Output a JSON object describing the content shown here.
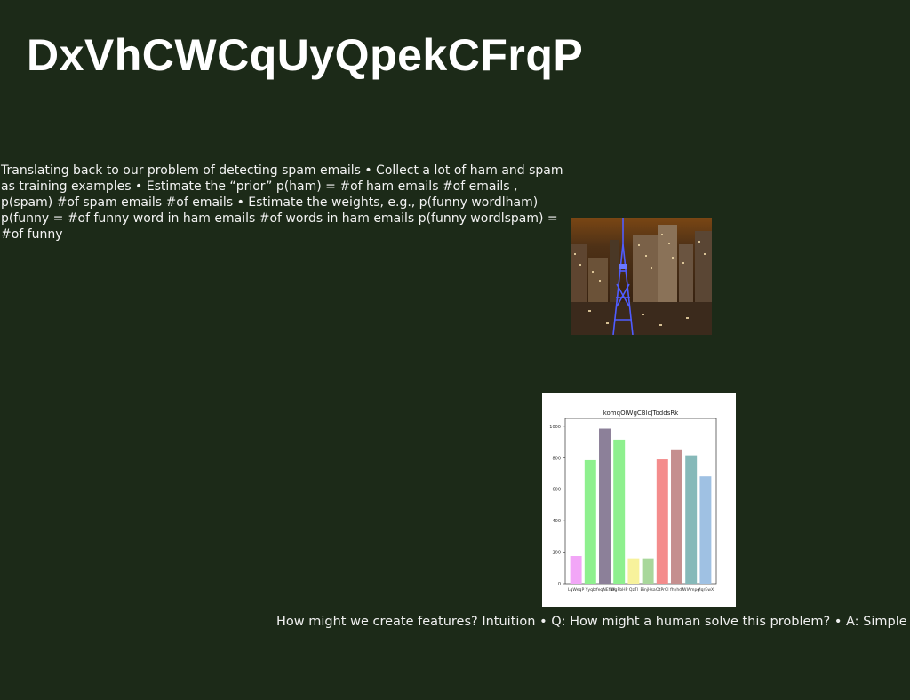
{
  "slide": {
    "title": "DxVhCWCqUyQpekCFrqP",
    "body": "Translating back to our problem of detecting spam emails • Collect a lot of ham and spam as training examples • Estimate the “prior” p(ham) = #of ham emails #of emails , p(spam) #of spam emails #of emails • Estimate the weights, e.g., p(funny wordlham) p(funny = #of funny word in ham emails #of words in ham emails p(funny wordlspam) = #of funny",
    "caption": "How might we create features? Intuition • Q: How might a human solve this problem? • A: Simple"
  },
  "chart_data": {
    "type": "bar",
    "title": "komqOlWgCBlcJToddsRk",
    "categories": [
      "LqWeqP",
      "Yyqb",
      "zfeqNEfRA",
      "WgPbHP",
      "QzTl",
      "BinjHsa",
      "OtPrCl",
      "fhyhdf",
      "WlAmpg",
      "MqrEwX"
    ],
    "values": [
      175,
      785,
      985,
      915,
      160,
      160,
      790,
      848,
      815,
      682
    ],
    "colors": [
      "#f2a6f7",
      "#8ef08e",
      "#8c8099",
      "#8ef08e",
      "#f7f29c",
      "#a8d79b",
      "#f48c8c",
      "#c58f8f",
      "#86b9b9",
      "#9fc1e3"
    ],
    "ylim": [
      0,
      1050
    ],
    "yticks": [
      0,
      200,
      400,
      600,
      800,
      1000
    ],
    "xlabel": "",
    "ylabel": "",
    "grid": false
  }
}
